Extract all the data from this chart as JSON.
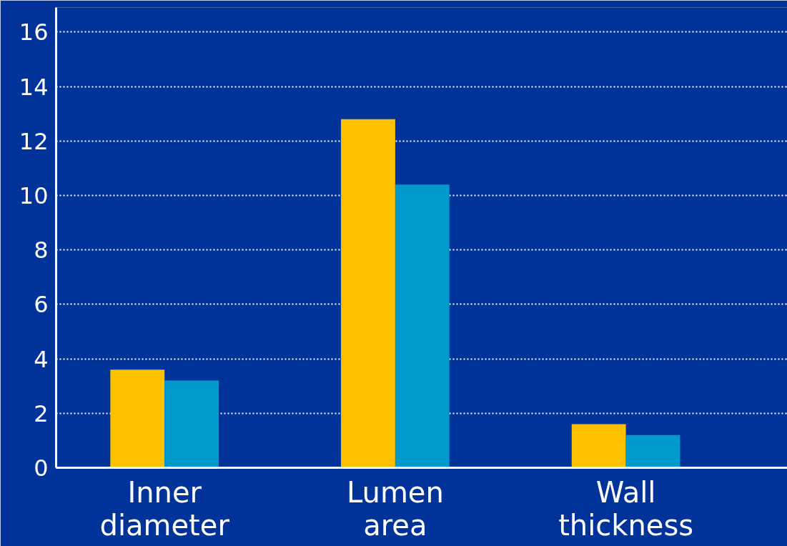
{
  "chart_data": {
    "type": "bar",
    "categories": [
      "Inner\ndiameter",
      "Lumen\narea",
      "Wall\nthickness"
    ],
    "series": [
      {
        "color": "#ffc000",
        "values": [
          3.6,
          12.8,
          1.6
        ]
      },
      {
        "color": "#0099cc",
        "values": [
          3.2,
          10.4,
          1.2
        ]
      }
    ],
    "ylim": [
      0,
      16.9
    ],
    "yticks": [
      0,
      2,
      4,
      6,
      8,
      10,
      12,
      14,
      16
    ],
    "grid": "y"
  }
}
